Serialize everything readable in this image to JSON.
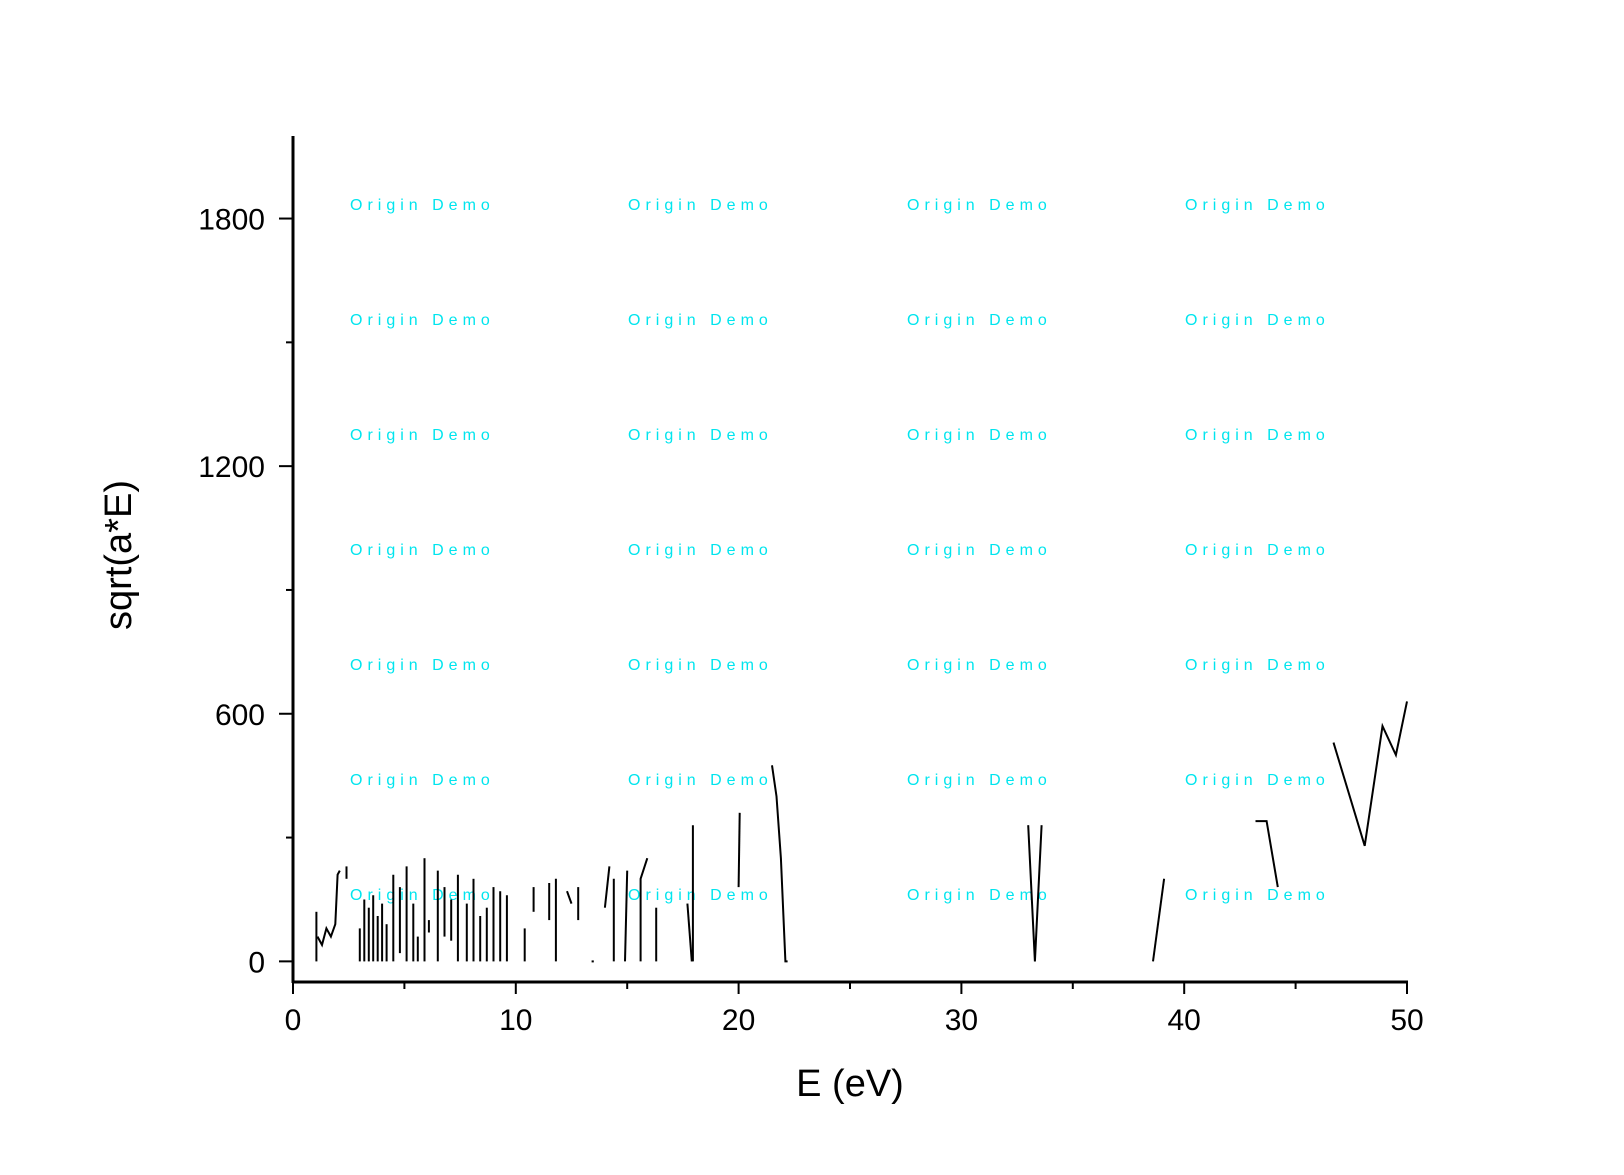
{
  "chart_data": {
    "type": "line",
    "title": "",
    "xlabel": "E (eV)",
    "ylabel": "sqrt(a*E)",
    "xlim": [
      0,
      50
    ],
    "ylim": [
      -50,
      2000
    ],
    "x_ticks": [
      0,
      10,
      20,
      30,
      40,
      50
    ],
    "x_tick_labels": [
      "0",
      "10",
      "20",
      "30",
      "40",
      "50"
    ],
    "y_ticks": [
      0,
      600,
      1200,
      1800
    ],
    "y_tick_labels": [
      "0",
      "600",
      "1200",
      "1800"
    ],
    "x_minor_ticks": [
      5,
      15,
      25,
      35,
      45
    ],
    "y_minor_ticks": [
      300,
      900,
      1500
    ],
    "grid": false,
    "legend": "none",
    "line_color": "#000000",
    "watermark": {
      "text": "Origin Demo",
      "color": "#00e5ee",
      "columns": 4,
      "rows": 7
    },
    "series": [
      {
        "segments": [
          [
            [
              1.05,
              0
            ],
            [
              1.05,
              120
            ]
          ],
          [
            [
              1.1,
              60
            ],
            [
              1.3,
              40
            ],
            [
              1.5,
              80
            ],
            [
              1.7,
              60
            ],
            [
              1.9,
              90
            ],
            [
              2.0,
              210
            ],
            [
              2.1,
              220
            ]
          ],
          [
            [
              2.4,
              200
            ],
            [
              2.4,
              230
            ]
          ],
          [
            [
              3.0,
              0
            ],
            [
              3.0,
              80
            ]
          ],
          [
            [
              3.2,
              0
            ],
            [
              3.2,
              150
            ]
          ],
          [
            [
              3.4,
              0
            ],
            [
              3.4,
              130
            ]
          ],
          [
            [
              3.6,
              0
            ],
            [
              3.6,
              160
            ]
          ],
          [
            [
              3.8,
              0
            ],
            [
              3.8,
              110
            ]
          ],
          [
            [
              4.0,
              0
            ],
            [
              4.0,
              140
            ]
          ],
          [
            [
              4.2,
              0
            ],
            [
              4.2,
              90
            ]
          ],
          [
            [
              4.5,
              0
            ],
            [
              4.5,
              210
            ]
          ],
          [
            [
              4.8,
              20
            ],
            [
              4.8,
              180
            ]
          ],
          [
            [
              5.1,
              0
            ],
            [
              5.1,
              230
            ]
          ],
          [
            [
              5.4,
              0
            ],
            [
              5.4,
              140
            ]
          ],
          [
            [
              5.6,
              0
            ],
            [
              5.6,
              60
            ]
          ],
          [
            [
              5.9,
              0
            ],
            [
              5.9,
              250
            ]
          ],
          [
            [
              6.1,
              100
            ],
            [
              6.1,
              70
            ]
          ],
          [
            [
              6.5,
              0
            ],
            [
              6.5,
              220
            ]
          ],
          [
            [
              6.8,
              60
            ],
            [
              6.8,
              180
            ]
          ],
          [
            [
              7.1,
              50
            ],
            [
              7.1,
              150
            ]
          ],
          [
            [
              7.4,
              0
            ],
            [
              7.4,
              210
            ]
          ],
          [
            [
              7.8,
              0
            ],
            [
              7.8,
              140
            ]
          ],
          [
            [
              8.1,
              0
            ],
            [
              8.1,
              200
            ]
          ],
          [
            [
              8.4,
              0
            ],
            [
              8.4,
              110
            ]
          ],
          [
            [
              8.7,
              0
            ],
            [
              8.7,
              130
            ]
          ],
          [
            [
              9.0,
              0
            ],
            [
              9.0,
              180
            ]
          ],
          [
            [
              9.3,
              0
            ],
            [
              9.3,
              170
            ]
          ],
          [
            [
              9.6,
              0
            ],
            [
              9.6,
              160
            ]
          ],
          [
            [
              10.4,
              0
            ],
            [
              10.4,
              80
            ]
          ],
          [
            [
              10.8,
              120
            ],
            [
              10.8,
              180
            ]
          ],
          [
            [
              11.5,
              100
            ],
            [
              11.5,
              190
            ]
          ],
          [
            [
              11.8,
              0
            ],
            [
              11.8,
              200
            ]
          ],
          [
            [
              12.3,
              170
            ],
            [
              12.5,
              140
            ]
          ],
          [
            [
              12.8,
              100
            ],
            [
              12.8,
              180
            ]
          ],
          [
            [
              13.4,
              0
            ],
            [
              13.5,
              0
            ]
          ],
          [
            [
              14.0,
              130
            ],
            [
              14.2,
              230
            ]
          ],
          [
            [
              14.4,
              0
            ],
            [
              14.4,
              200
            ]
          ],
          [
            [
              14.9,
              0
            ],
            [
              15.0,
              220
            ]
          ],
          [
            [
              15.6,
              0
            ],
            [
              15.6,
              200
            ],
            [
              15.9,
              250
            ]
          ],
          [
            [
              16.3,
              0
            ],
            [
              16.3,
              130
            ]
          ],
          [
            [
              17.7,
              140
            ],
            [
              17.9,
              0
            ]
          ],
          [
            [
              17.95,
              0
            ],
            [
              17.95,
              330
            ]
          ],
          [
            [
              20.0,
              180
            ],
            [
              20.05,
              360
            ]
          ],
          [
            [
              21.5,
              475
            ],
            [
              21.7,
              400
            ],
            [
              21.9,
              250
            ],
            [
              22.1,
              0
            ],
            [
              22.2,
              0
            ]
          ],
          [
            [
              33.0,
              330
            ],
            [
              33.3,
              0
            ],
            [
              33.6,
              330
            ]
          ],
          [
            [
              38.6,
              0
            ],
            [
              39.1,
              200
            ]
          ],
          [
            [
              43.2,
              340
            ],
            [
              43.7,
              340
            ],
            [
              44.2,
              180
            ]
          ],
          [
            [
              46.7,
              530
            ],
            [
              48.1,
              280
            ],
            [
              48.9,
              570
            ],
            [
              49.5,
              500
            ],
            [
              50.0,
              630
            ]
          ]
        ]
      }
    ]
  }
}
